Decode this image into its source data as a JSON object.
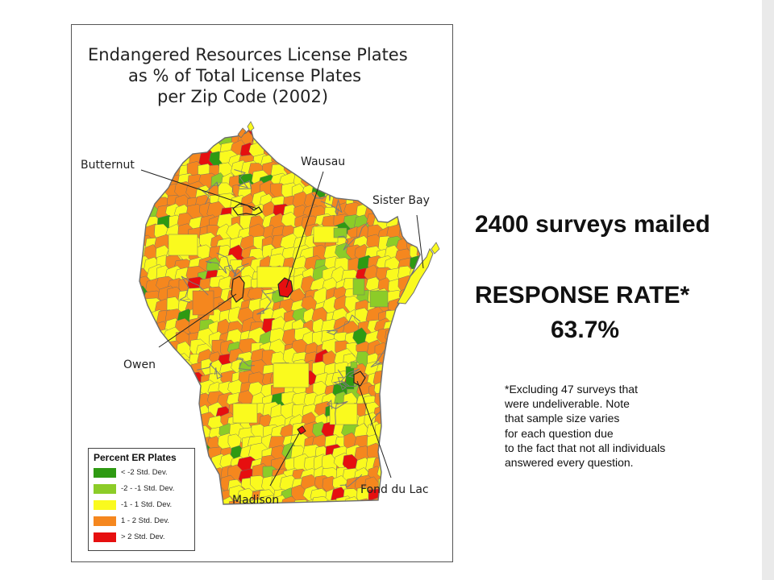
{
  "map": {
    "title_lines": [
      "Endangered Resources License Plates",
      "as % of Total License Plates",
      "per Zip Code (2002)"
    ],
    "cities": {
      "butternut": "Butternut",
      "wausau": "Wausau",
      "sister_bay": "Sister Bay",
      "owen": "Owen",
      "madison": "Madison",
      "fond_du_lac": "Fond du Lac"
    },
    "legend": {
      "title": "Percent ER Plates",
      "items": [
        {
          "label": "< -2 Std. Dev.",
          "color": "#2e9a12"
        },
        {
          "label": "-2 - -1 Std. Dev.",
          "color": "#8ccc28"
        },
        {
          "label": "-1 - 1 Std. Dev.",
          "color": "#fafa1e"
        },
        {
          "label": "1 - 2 Std. Dev.",
          "color": "#f5871e"
        },
        {
          "label": "> 2 Std. Dev.",
          "color": "#e60f0f"
        }
      ]
    },
    "boundary_color": "#6e6e6e"
  },
  "summary": {
    "surveys_mailed": "2400 surveys mailed",
    "response_rate_label": "RESPONSE RATE*",
    "response_rate_value": "63.7%",
    "footnote_lines": [
      "*Excluding 47 surveys that",
      "were undeliverable. Note",
      "that sample size varies",
      "for each question due",
      "to the fact that not all individuals",
      "answered every question."
    ]
  }
}
